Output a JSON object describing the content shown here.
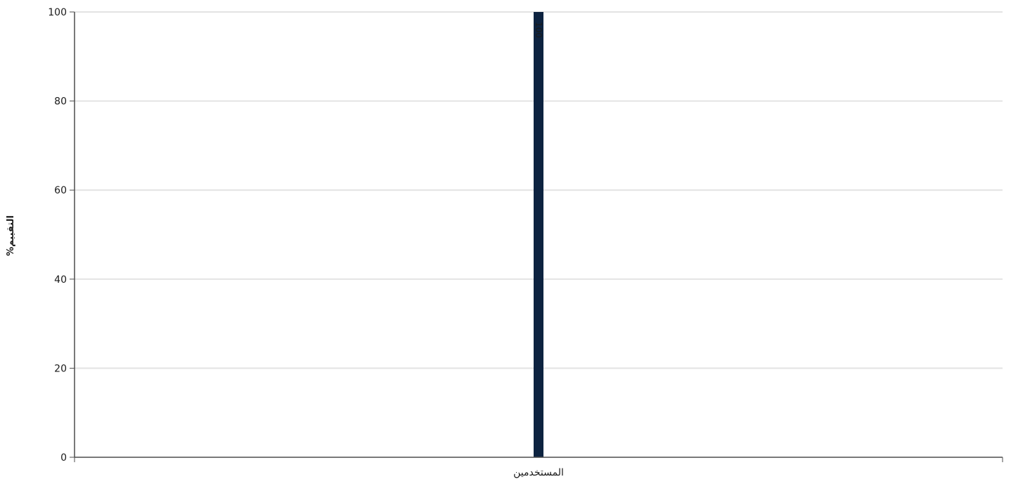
{
  "chart_data": {
    "type": "bar",
    "categories": [
      "المستخدمين"
    ],
    "values": [
      100
    ],
    "ylabel": "%التقييم",
    "ylim": [
      0,
      100
    ],
    "yticks": [
      0,
      20,
      40,
      60,
      80,
      100
    ],
    "grid": true,
    "legend": "none",
    "data_labels": [
      "100"
    ],
    "colors": {
      "bar": "#0d2340",
      "grid": "#e3e3e3",
      "axis": "#4d4d4d",
      "text": "#1a1a1a"
    }
  }
}
